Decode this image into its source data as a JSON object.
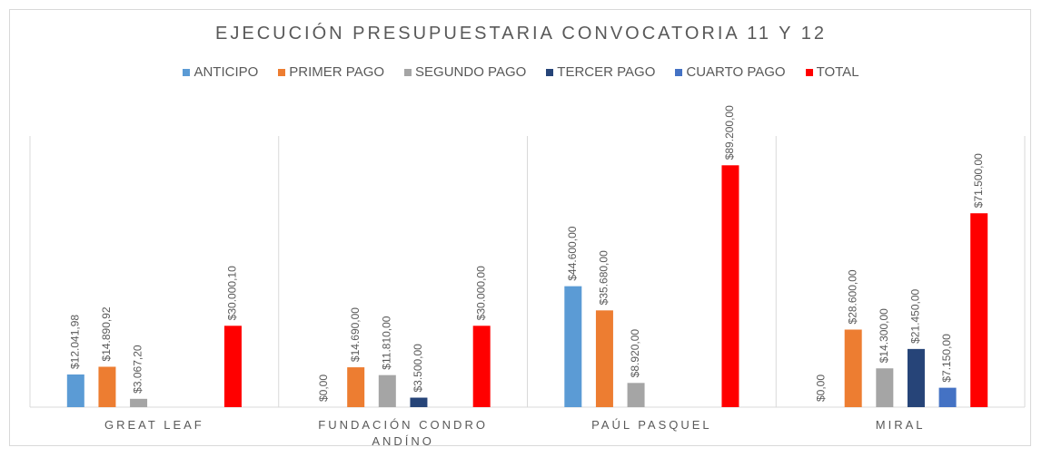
{
  "chart_data": {
    "type": "bar",
    "title": "EJECUCIÓN PRESUPUESTARIA CONVOCATORIA 11 Y 12",
    "categories": [
      "GREAT LEAF",
      "FUNDACIÓN CONDRO ANDÍNO",
      "PAÚL PASQUEL",
      "MIRAL"
    ],
    "ylim": [
      0,
      100000
    ],
    "series": [
      {
        "name": "ANTICIPO",
        "color": "#5b9bd5",
        "values": [
          12041.98,
          0,
          44600,
          0
        ],
        "value_labels": [
          "$12.041,98",
          "$0,00",
          "$44.600,00",
          "$0,00"
        ]
      },
      {
        "name": "PRIMER PAGO",
        "color": "#ed7d31",
        "values": [
          14890.92,
          14690,
          35680,
          28600
        ],
        "value_labels": [
          "$14.890,92",
          "$14.690,00",
          "$35.680,00",
          "$28.600,00"
        ]
      },
      {
        "name": "SEGUNDO PAGO",
        "color": "#a5a5a5",
        "values": [
          3067.2,
          11810,
          8920,
          14300
        ],
        "value_labels": [
          "$3.067,20",
          "$11.810,00",
          "$8.920,00",
          "$14.300,00"
        ]
      },
      {
        "name": "TERCER PAGO",
        "color": "#264478",
        "values": [
          null,
          3500,
          null,
          21450
        ],
        "value_labels": [
          null,
          "$3.500,00",
          null,
          "$21.450,00"
        ]
      },
      {
        "name": "CUARTO PAGO",
        "color": "#4472c4",
        "values": [
          null,
          null,
          null,
          7150
        ],
        "value_labels": [
          null,
          null,
          null,
          "$7.150,00"
        ]
      },
      {
        "name": "TOTAL",
        "color": "#ff0000",
        "values": [
          30000.1,
          30000,
          89200,
          71500
        ],
        "value_labels": [
          "$30.000,10",
          "$30.000,00",
          "$89.200,00",
          "$71.500,00"
        ]
      }
    ]
  }
}
